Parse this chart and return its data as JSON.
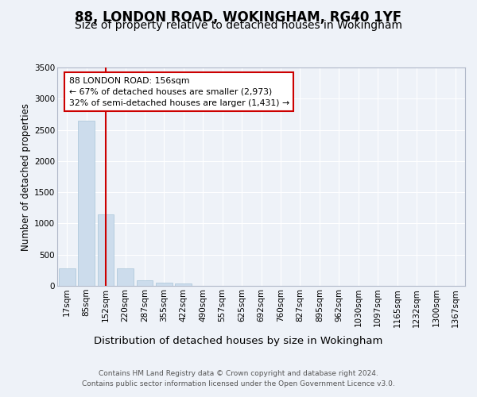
{
  "title1": "88, LONDON ROAD, WOKINGHAM, RG40 1YF",
  "title2": "Size of property relative to detached houses in Wokingham",
  "xlabel": "Distribution of detached houses by size in Wokingham",
  "ylabel": "Number of detached properties",
  "bar_labels": [
    "17sqm",
    "85sqm",
    "152sqm",
    "220sqm",
    "287sqm",
    "355sqm",
    "422sqm",
    "490sqm",
    "557sqm",
    "625sqm",
    "692sqm",
    "760sqm",
    "827sqm",
    "895sqm",
    "962sqm",
    "1030sqm",
    "1097sqm",
    "1165sqm",
    "1232sqm",
    "1300sqm",
    "1367sqm"
  ],
  "bar_values": [
    280,
    2650,
    1150,
    285,
    90,
    45,
    35,
    0,
    0,
    0,
    0,
    0,
    0,
    0,
    0,
    0,
    0,
    0,
    0,
    0,
    0
  ],
  "bar_color": "#ccdcec",
  "bar_edge_color": "#a8c4d8",
  "vline_x": 2,
  "vline_color": "#cc0000",
  "annotation_text": "88 LONDON ROAD: 156sqm\n← 67% of detached houses are smaller (2,973)\n32% of semi-detached houses are larger (1,431) →",
  "annotation_box_color": "#ffffff",
  "annotation_box_edge_color": "#cc0000",
  "ylim": [
    0,
    3500
  ],
  "yticks": [
    0,
    500,
    1000,
    1500,
    2000,
    2500,
    3000,
    3500
  ],
  "bg_color": "#eef2f8",
  "plot_bg_color": "#eef2f8",
  "footer": "Contains HM Land Registry data © Crown copyright and database right 2024.\nContains public sector information licensed under the Open Government Licence v3.0.",
  "title1_fontsize": 12,
  "title2_fontsize": 10,
  "xlabel_fontsize": 9.5,
  "ylabel_fontsize": 8.5,
  "tick_fontsize": 7.5,
  "footer_fontsize": 6.5
}
